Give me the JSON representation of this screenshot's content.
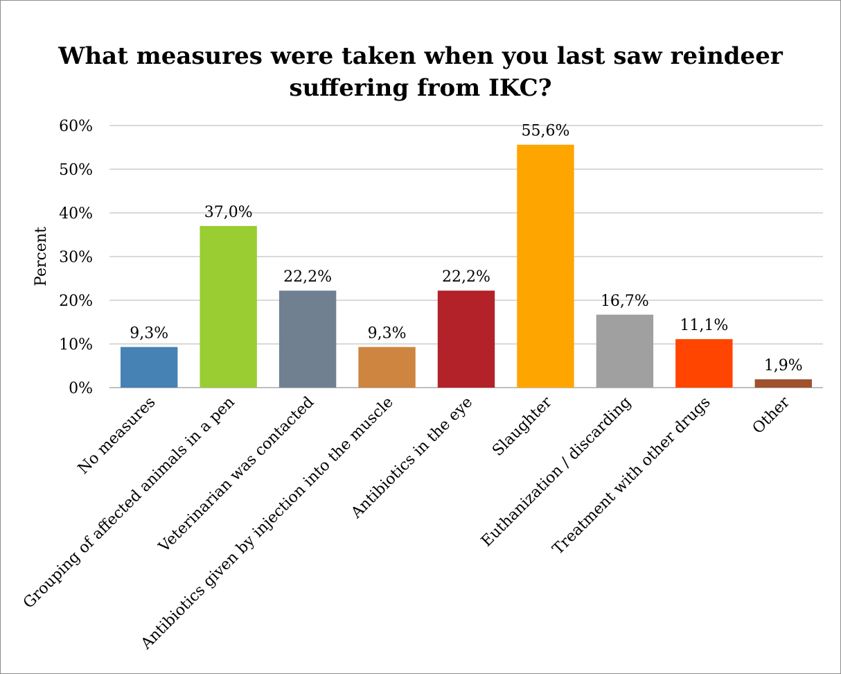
{
  "chart_data": {
    "type": "bar",
    "title_lines": [
      "What measures were taken when you last saw reindeer",
      "suffering from IKC?"
    ],
    "ylabel": "Percent",
    "xlabel": "",
    "ylim": [
      0,
      60
    ],
    "yticks": [
      "0%",
      "10%",
      "20%",
      "30%",
      "40%",
      "50%",
      "60%"
    ],
    "grid": true,
    "categories": [
      "No measures",
      "Grouping of affected animals in a pen",
      "Veterinarian was contacted",
      "Antibiotics given by injection into the muscle",
      "Antibiotics in the eye",
      "Slaughter",
      "Euthanization / discarding",
      "Treatment with other drugs",
      "Other"
    ],
    "values": [
      9.3,
      37.0,
      22.2,
      9.3,
      22.2,
      55.6,
      16.7,
      11.1,
      1.9
    ],
    "data_labels": [
      "9,3%",
      "37,0%",
      "22,2%",
      "9,3%",
      "22,2%",
      "55,6%",
      "16,7%",
      "11,1%",
      "1,9%"
    ],
    "colors": [
      "#4682b4",
      "#9acd32",
      "#708090",
      "#cd853f",
      "#b22228",
      "#ffa500",
      "#a0a0a0",
      "#ff4500",
      "#a0522d"
    ]
  }
}
